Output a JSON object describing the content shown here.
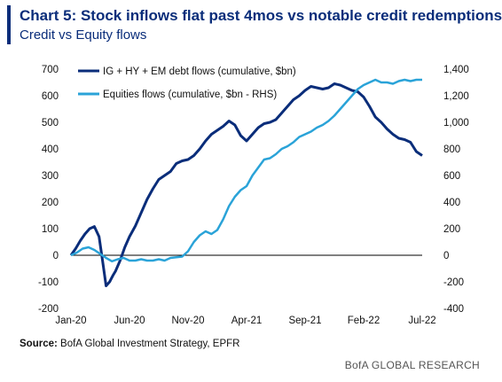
{
  "header": {
    "title": "Chart 5: Stock inflows flat past 4mos vs notable credit redemptions",
    "subtitle": "Credit vs Equity flows"
  },
  "footer": {
    "source_label": "Source:",
    "source_text": "BofA Global Investment Strategy, EPFR",
    "credit": "BofA GLOBAL RESEARCH"
  },
  "chart_data": {
    "type": "line",
    "x_tick_labels": [
      "Jan-20",
      "Jun-20",
      "Nov-20",
      "Apr-21",
      "Sep-21",
      "Feb-22",
      "Jul-22"
    ],
    "x_tick_months": [
      0,
      5,
      10,
      15,
      20,
      25,
      30
    ],
    "y_left": {
      "ticks": [
        -200,
        -100,
        0,
        100,
        200,
        300,
        400,
        500,
        600,
        700
      ],
      "labels": [
        "-200",
        "-100",
        "0",
        "100",
        "200",
        "300",
        "400",
        "500",
        "600",
        "700"
      ],
      "lim": [
        -200,
        700
      ]
    },
    "y_right": {
      "ticks": [
        -400,
        -200,
        0,
        200,
        400,
        600,
        800,
        1000,
        1200,
        1400
      ],
      "labels": [
        "-400",
        "-200",
        "0",
        "200",
        "400",
        "600",
        "800",
        "1,000",
        "1,200",
        "1,400"
      ],
      "lim": [
        -400,
        1400
      ]
    },
    "colors": {
      "debt": "#0a2d7a",
      "equity": "#2aa3d8",
      "zero_line": "#000000"
    },
    "legend_position": "top-left",
    "series": [
      {
        "name": "IG + HY + EM debt flows (cumulative, $bn)",
        "axis": "left",
        "x": [
          0,
          0.4,
          0.8,
          1.2,
          1.6,
          2.0,
          2.4,
          2.7,
          3.0,
          3.3,
          3.6,
          3.8,
          4.2,
          4.6,
          5.0,
          5.5,
          6.0,
          6.5,
          7.0,
          7.5,
          8.0,
          8.5,
          9.0,
          9.5,
          10.0,
          10.5,
          11.0,
          11.5,
          12.0,
          12.5,
          13.0,
          13.5,
          14.0,
          14.5,
          15.0,
          15.5,
          16.0,
          16.5,
          17.0,
          17.5,
          18.0,
          18.5,
          19.0,
          19.5,
          20.0,
          20.5,
          21.0,
          21.5,
          22.0,
          22.5,
          23.0,
          23.5,
          24.0,
          24.5,
          25.0,
          25.5,
          26.0,
          26.5,
          27.0,
          27.5,
          28.0,
          28.5,
          29.0,
          29.5,
          30.0
        ],
        "values": [
          0,
          25,
          55,
          80,
          100,
          108,
          70,
          -20,
          -115,
          -100,
          -75,
          -60,
          -20,
          30,
          70,
          110,
          160,
          210,
          250,
          285,
          300,
          315,
          345,
          355,
          360,
          375,
          400,
          430,
          455,
          470,
          485,
          505,
          490,
          450,
          430,
          455,
          480,
          495,
          500,
          510,
          535,
          560,
          585,
          600,
          620,
          635,
          630,
          625,
          630,
          645,
          640,
          630,
          620,
          615,
          595,
          560,
          520,
          500,
          475,
          455,
          440,
          435,
          425,
          390,
          375
        ]
      },
      {
        "name": "Equities flows (cumulative, $bn - RHS)",
        "axis": "right",
        "x": [
          0,
          0.5,
          1.0,
          1.5,
          2.0,
          2.5,
          3.0,
          3.5,
          4.0,
          4.5,
          5.0,
          5.5,
          6.0,
          6.5,
          7.0,
          7.5,
          8.0,
          8.5,
          9.0,
          9.5,
          10.0,
          10.5,
          11.0,
          11.5,
          12.0,
          12.5,
          13.0,
          13.5,
          14.0,
          14.5,
          15.0,
          15.5,
          16.0,
          16.5,
          17.0,
          17.5,
          18.0,
          18.5,
          19.0,
          19.5,
          20.0,
          20.5,
          21.0,
          21.5,
          22.0,
          22.5,
          23.0,
          23.5,
          24.0,
          24.5,
          25.0,
          25.5,
          26.0,
          26.5,
          27.0,
          27.5,
          28.0,
          28.5,
          29.0,
          29.5,
          30.0
        ],
        "values": [
          0,
          20,
          50,
          60,
          40,
          10,
          -20,
          -45,
          -30,
          -20,
          -40,
          -40,
          -30,
          -40,
          -40,
          -30,
          -40,
          -20,
          -15,
          -10,
          30,
          100,
          150,
          180,
          160,
          190,
          270,
          370,
          440,
          490,
          520,
          600,
          660,
          720,
          730,
          760,
          800,
          820,
          850,
          890,
          910,
          930,
          960,
          980,
          1010,
          1050,
          1100,
          1150,
          1200,
          1250,
          1280,
          1300,
          1320,
          1300,
          1300,
          1290,
          1310,
          1320,
          1310,
          1320,
          1320
        ]
      }
    ]
  }
}
